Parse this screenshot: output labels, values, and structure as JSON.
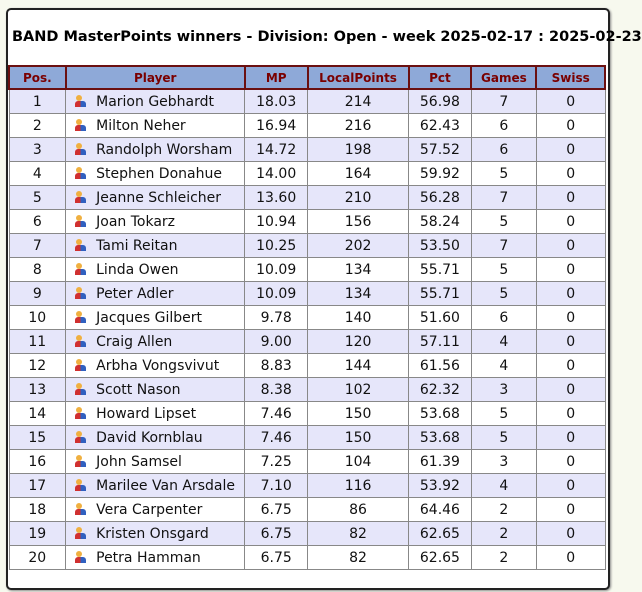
{
  "title": "BAND MasterPoints winners - Division: Open - week 2025-02-17 : 2025-02-23",
  "columns": [
    "Pos.",
    "Player",
    "MP",
    "LocalPoints",
    "Pct",
    "Games",
    "Swiss"
  ],
  "rows": [
    [
      "1",
      "Marion Gebhardt",
      "18.03",
      "214",
      "56.98",
      "7",
      "0"
    ],
    [
      "2",
      "Milton Neher",
      "16.94",
      "216",
      "62.43",
      "6",
      "0"
    ],
    [
      "3",
      "Randolph Worsham",
      "14.72",
      "198",
      "57.52",
      "6",
      "0"
    ],
    [
      "4",
      "Stephen Donahue",
      "14.00",
      "164",
      "59.92",
      "5",
      "0"
    ],
    [
      "5",
      "Jeanne Schleicher",
      "13.60",
      "210",
      "56.28",
      "7",
      "0"
    ],
    [
      "6",
      "Joan Tokarz",
      "10.94",
      "156",
      "58.24",
      "5",
      "0"
    ],
    [
      "7",
      "Tami Reitan",
      "10.25",
      "202",
      "53.50",
      "7",
      "0"
    ],
    [
      "8",
      "Linda Owen",
      "10.09",
      "134",
      "55.71",
      "5",
      "0"
    ],
    [
      "9",
      "Peter Adler",
      "10.09",
      "134",
      "55.71",
      "5",
      "0"
    ],
    [
      "10",
      "Jacques Gilbert",
      "9.78",
      "140",
      "51.60",
      "6",
      "0"
    ],
    [
      "11",
      "Craig Allen",
      "9.00",
      "120",
      "57.11",
      "4",
      "0"
    ],
    [
      "12",
      "Arbha Vongsvivut",
      "8.83",
      "144",
      "61.56",
      "4",
      "0"
    ],
    [
      "13",
      "Scott Nason",
      "8.38",
      "102",
      "62.32",
      "3",
      "0"
    ],
    [
      "14",
      "Howard Lipset",
      "7.46",
      "150",
      "53.68",
      "5",
      "0"
    ],
    [
      "15",
      "David Kornblau",
      "7.46",
      "150",
      "53.68",
      "5",
      "0"
    ],
    [
      "16",
      "John Samsel",
      "7.25",
      "104",
      "61.39",
      "3",
      "0"
    ],
    [
      "17",
      "Marilee Van Arsdale",
      "7.10",
      "116",
      "53.92",
      "4",
      "0"
    ],
    [
      "18",
      "Vera Carpenter",
      "6.75",
      "86",
      "64.46",
      "2",
      "0"
    ],
    [
      "19",
      "Kristen Onsgard",
      "6.75",
      "82",
      "62.65",
      "2",
      "0"
    ],
    [
      "20",
      "Petra Hamman",
      "6.75",
      "82",
      "62.65",
      "2",
      "0"
    ]
  ],
  "player_icon": "people-icon",
  "colors": {
    "header_bg": "#8ea9d8",
    "header_text": "#7a0000",
    "row_alt": "#e6e6fa"
  }
}
